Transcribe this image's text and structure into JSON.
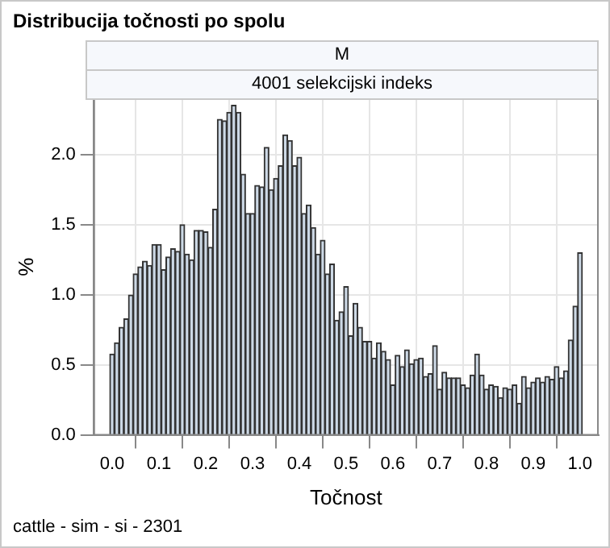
{
  "chart_data": {
    "type": "histogram",
    "title": "Distribucija točnosti po spolu",
    "subtitle": "M",
    "annotations": [
      "4001 selekcijski indeks",
      "cattle - sim - si - 2301"
    ],
    "xlabel": "Točnost",
    "ylabel": "%",
    "bins": [
      -0.005,
      0.005,
      0.015,
      0.025,
      0.035,
      0.045,
      0.055,
      0.065,
      0.075,
      0.085,
      0.095,
      0.105,
      0.115,
      0.125,
      0.135,
      0.145,
      0.155,
      0.165,
      0.175,
      0.185,
      0.195,
      0.205,
      0.215,
      0.225,
      0.235,
      0.245,
      0.255,
      0.265,
      0.275,
      0.285,
      0.295,
      0.305,
      0.315,
      0.325,
      0.335,
      0.345,
      0.355,
      0.365,
      0.375,
      0.385,
      0.395,
      0.405,
      0.415,
      0.425,
      0.435,
      0.445,
      0.455,
      0.465,
      0.475,
      0.485,
      0.495,
      0.505,
      0.515,
      0.525,
      0.535,
      0.545,
      0.555,
      0.565,
      0.575,
      0.585,
      0.595,
      0.605,
      0.615,
      0.625,
      0.635,
      0.645,
      0.655,
      0.665,
      0.675,
      0.685,
      0.695,
      0.705,
      0.715,
      0.725,
      0.735,
      0.745,
      0.755,
      0.765,
      0.775,
      0.785,
      0.795,
      0.805,
      0.815,
      0.825,
      0.835,
      0.845,
      0.855,
      0.865,
      0.875,
      0.885,
      0.895,
      0.905,
      0.915,
      0.925,
      0.935,
      0.945,
      0.955,
      0.965,
      0.975,
      0.985,
      0.995,
      1.005
    ],
    "values": [
      0.58,
      0.66,
      0.77,
      0.83,
      1.0,
      1.15,
      1.2,
      1.24,
      1.21,
      1.36,
      1.36,
      1.18,
      1.27,
      1.33,
      1.31,
      1.5,
      1.29,
      1.25,
      1.46,
      1.46,
      1.45,
      1.34,
      1.61,
      2.25,
      2.24,
      2.3,
      2.35,
      2.3,
      1.86,
      1.58,
      1.58,
      1.78,
      1.77,
      2.05,
      1.75,
      1.83,
      1.92,
      2.14,
      2.1,
      1.92,
      1.98,
      1.58,
      1.64,
      1.48,
      1.29,
      1.39,
      1.15,
      1.22,
      0.82,
      0.88,
      1.06,
      0.71,
      0.94,
      0.77,
      0.67,
      0.67,
      0.55,
      0.66,
      0.6,
      0.54,
      0.36,
      0.57,
      0.49,
      0.61,
      0.51,
      0.54,
      0.55,
      0.42,
      0.44,
      0.64,
      0.33,
      0.45,
      0.41,
      0.41,
      0.41,
      0.36,
      0.34,
      0.43,
      0.58,
      0.43,
      0.33,
      0.36,
      0.35,
      0.27,
      0.34,
      0.33,
      0.36,
      0.23,
      0.42,
      0.34,
      0.38,
      0.41,
      0.38,
      0.42,
      0.4,
      0.49,
      0.41,
      0.46,
      0.68,
      0.92,
      1.3
    ],
    "color": "#cdd9e6",
    "xlim": [
      -0.04,
      1.04
    ],
    "ylim": [
      0,
      2.4
    ],
    "xticks": [
      {
        "value": 0,
        "label": "0.0"
      },
      0.1,
      0.2,
      0.3,
      0.4,
      0.5,
      0.6,
      0.7,
      0.8,
      0.9,
      {
        "value": 1,
        "label": "1.0"
      }
    ],
    "yticks": [
      {
        "value": 0,
        "label": "0.0"
      },
      0.5,
      {
        "value": 1,
        "label": "1.0"
      },
      1.5,
      {
        "value": 2,
        "label": "2.0"
      }
    ],
    "grid": true,
    "legend": false
  }
}
